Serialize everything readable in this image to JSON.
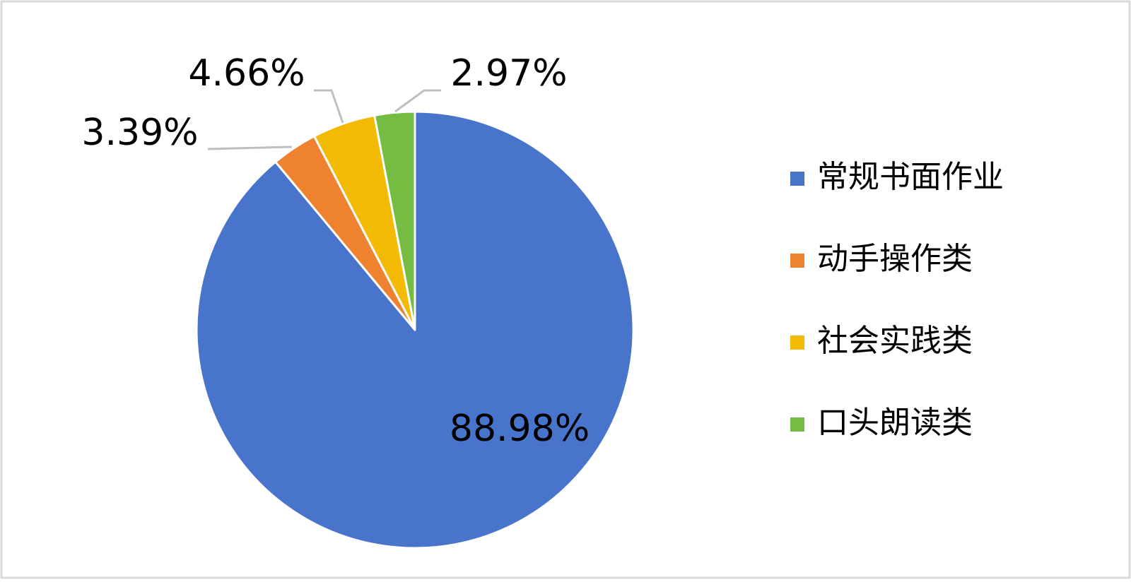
{
  "chart_data": {
    "type": "pie",
    "categories": [
      "常规书面作业",
      "动手操作类",
      "社会实践类",
      "口头朗读类"
    ],
    "values": [
      88.98,
      3.39,
      4.66,
      2.97
    ],
    "value_labels": [
      "88.98%",
      "3.39%",
      "4.66%",
      "2.97%"
    ],
    "colors": [
      "#4874cb",
      "#ee822f",
      "#f2ba02",
      "#75bd42"
    ],
    "legend": "right"
  }
}
